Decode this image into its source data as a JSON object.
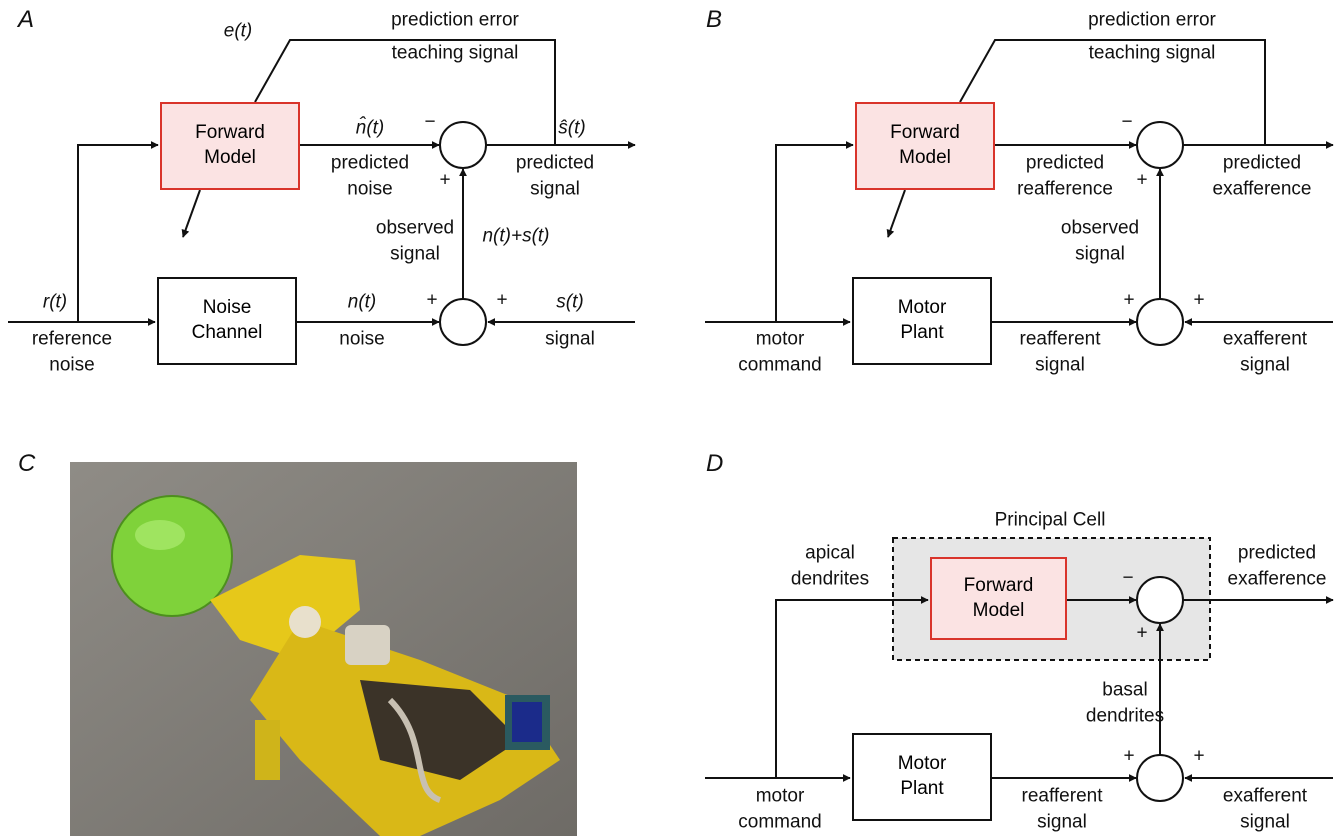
{
  "panel_a": {
    "label": "A",
    "error_label": [
      "prediction error",
      "teaching signal"
    ],
    "error_symbol": "e(t)",
    "forward_model": "Forward Model",
    "prediction_symbol": "n̂(t)",
    "prediction_label": [
      "predicted",
      "noise"
    ],
    "output_symbol": "ŝ(t)",
    "output_label": [
      "predicted",
      "signal"
    ],
    "observed_label": [
      "observed",
      "signal"
    ],
    "observed_symbol": "n(t)+s(t)",
    "input_symbol": "r(t)",
    "input_label": [
      "reference",
      "noise"
    ],
    "channel": "Noise Channel",
    "channel_symbol": "n(t)",
    "channel_label": "noise",
    "signal_symbol": "s(t)",
    "signal_label": "signal",
    "signs": [
      "−",
      "+",
      "+",
      "+"
    ]
  },
  "panel_b": {
    "label": "B",
    "error_label": [
      "prediction error",
      "teaching signal"
    ],
    "forward_model": "Forward Model",
    "prediction_label": [
      "predicted",
      "reafference"
    ],
    "output_label": [
      "predicted",
      "exafference"
    ],
    "observed_label": [
      "observed",
      "signal"
    ],
    "input_label": [
      "motor",
      "command"
    ],
    "plant": "Motor Plant",
    "plant_label": [
      "reafferent",
      "signal"
    ],
    "signal_label": [
      "exafferent",
      "signal"
    ],
    "signs": [
      "−",
      "+",
      "+",
      "+"
    ]
  },
  "panel_c": {
    "label": "C"
  },
  "panel_d": {
    "label": "D",
    "cell": "Principal Cell",
    "apical_label": [
      "apical",
      "dendrites"
    ],
    "forward_model": "Forward Model",
    "output_label": [
      "predicted",
      "exafference"
    ],
    "basal_label": [
      "basal",
      "dendrites"
    ],
    "input_label": [
      "motor",
      "command"
    ],
    "plant": "Motor Plant",
    "plant_label": [
      "reafferent",
      "signal"
    ],
    "signal_label": [
      "exafferent",
      "signal"
    ],
    "signs": [
      "−",
      "+",
      "+",
      "+"
    ]
  }
}
